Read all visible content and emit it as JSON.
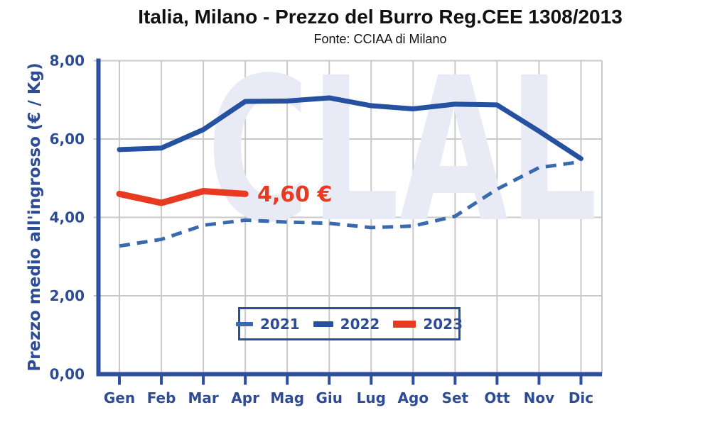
{
  "chart_data": {
    "type": "line",
    "title": "Italia, Milano - Prezzo del Burro Reg.CEE 1308/2013",
    "subtitle": "Fonte: CCIAA di Milano",
    "ylabel": "Prezzo medio all'ingrosso (€ / Kg)",
    "xlabel": "",
    "categories": [
      "Gen",
      "Feb",
      "Mar",
      "Apr",
      "Mag",
      "Giu",
      "Lug",
      "Ago",
      "Set",
      "Ott",
      "Nov",
      "Dic"
    ],
    "ylim": [
      0,
      8
    ],
    "grid": true,
    "legend_position": "bottom-center",
    "y_ticks": {
      "values": [
        0,
        2,
        4,
        6,
        8
      ],
      "labels": [
        "0,00",
        "2,00",
        "4,00",
        "6,00",
        "8,00"
      ]
    },
    "series": [
      {
        "name": "2021",
        "style": "dashed",
        "color": "#3a6aae",
        "line_width": 5,
        "values": [
          3.27,
          3.44,
          3.8,
          3.93,
          3.88,
          3.85,
          3.74,
          3.78,
          4.03,
          4.72,
          5.27,
          5.42
        ]
      },
      {
        "name": "2022",
        "style": "solid",
        "color": "#2452a0",
        "line_width": 7,
        "values": [
          5.73,
          5.77,
          6.24,
          6.96,
          6.97,
          7.05,
          6.85,
          6.77,
          6.89,
          6.87,
          6.2,
          5.5
        ]
      },
      {
        "name": "2023",
        "style": "solid",
        "color": "#e83a20",
        "line_width": 9,
        "values": [
          4.6,
          4.37,
          4.67,
          4.6,
          null,
          null,
          null,
          null,
          null,
          null,
          null,
          null
        ]
      }
    ],
    "annotation": {
      "text": "4,60 €",
      "color": "#e83a20",
      "series": "2023",
      "month": "Apr"
    },
    "watermark": "CLAL"
  },
  "colors": {
    "axis": "#2d4f9c",
    "axis_text": "#2d4c96",
    "gridline": "#c9c9c9",
    "watermark": "#e8eaf6",
    "legend_border": "#2452a0",
    "background": "#ffffff",
    "title_text": "#111111"
  }
}
